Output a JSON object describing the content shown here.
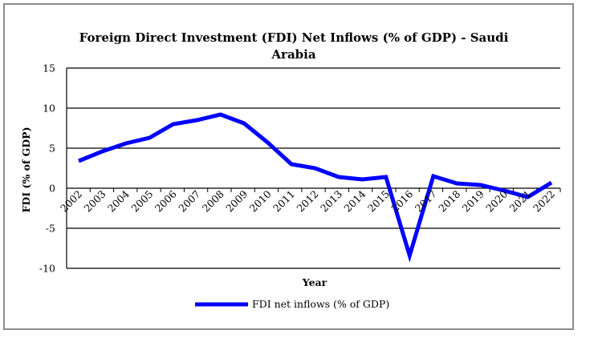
{
  "chart_data": {
    "type": "line",
    "title_line1": "Foreign Direct Investment (FDI) Net Inflows (% of GDP) - Saudi",
    "title_line2": "Arabia",
    "xlabel": "Year",
    "ylabel": "FDI (% of GDP)",
    "categories": [
      "2002",
      "2003",
      "2004",
      "2005",
      "2006",
      "2007",
      "2008",
      "2009",
      "2010",
      "2011",
      "2012",
      "2013",
      "2014",
      "2015",
      "2016",
      "2017",
      "2018",
      "2019",
      "2020",
      "2021",
      "2022"
    ],
    "series": [
      {
        "name": "FDI net inflows (% of GDP)",
        "color": "#0000ff",
        "values": [
          3.4,
          4.6,
          5.6,
          6.3,
          8.0,
          8.5,
          9.2,
          8.1,
          5.7,
          3.0,
          2.5,
          1.4,
          1.1,
          1.4,
          -8.4,
          1.5,
          0.6,
          0.4,
          -0.3,
          -1.1,
          0.7
        ]
      }
    ],
    "ylim": [
      -10,
      15
    ],
    "yticks": [
      "15",
      "10",
      "5",
      "0",
      "-5",
      "-10"
    ],
    "ytick_values": [
      15,
      10,
      5,
      0,
      -5,
      -10
    ],
    "grid": true,
    "legend_position": "bottom"
  }
}
